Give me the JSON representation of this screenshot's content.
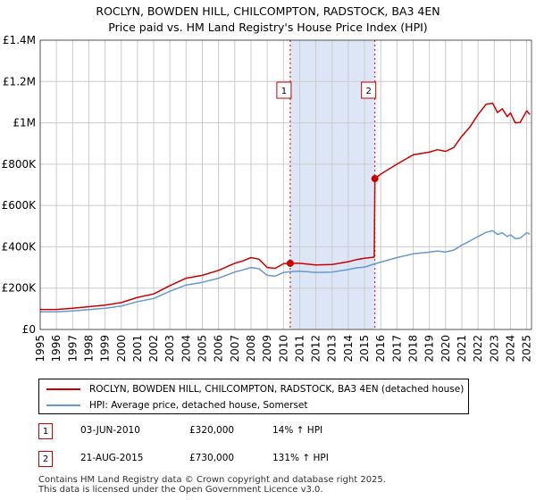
{
  "title": {
    "line1": "ROCLYN, BOWDEN HILL, CHILCOMPTON, RADSTOCK, BA3 4EN",
    "line2": "Price paid vs. HM Land Registry's House Price Index (HPI)"
  },
  "colors": {
    "property": "#cc0000",
    "hpi": "#6699cc",
    "shade": "#dde6f7",
    "grid": "#cccccc",
    "marker_border": "#cc0000"
  },
  "legend": {
    "property_label": "ROCLYN, BOWDEN HILL, CHILCOMPTON, RADSTOCK, BA3 4EN (detached house)",
    "hpi_label": "HPI: Average price, detached house, Somerset"
  },
  "transactions": [
    {
      "id": "1",
      "date": "03-JUN-2010",
      "price": "£320,000",
      "hpi_change": "14% ↑ HPI"
    },
    {
      "id": "2",
      "date": "21-AUG-2015",
      "price": "£730,000",
      "hpi_change": "131% ↑ HPI"
    }
  ],
  "footer": {
    "line1": "Contains HM Land Registry data © Crown copyright and database right 2025.",
    "line2": "This data is licensed under the Open Government Licence v3.0."
  },
  "chart_data": {
    "type": "line",
    "title": "ROCLYN, BOWDEN HILL, CHILCOMPTON, RADSTOCK, BA3 4EN",
    "subtitle": "Price paid vs. HM Land Registry's House Price Index (HPI)",
    "xlabel": "",
    "ylabel": "",
    "xlim": [
      1995,
      2025.3
    ],
    "ylim": [
      0,
      1400000
    ],
    "grid": true,
    "x_ticks": [
      "1995",
      "1996",
      "1997",
      "1998",
      "1999",
      "2000",
      "2001",
      "2002",
      "2003",
      "2004",
      "2005",
      "2006",
      "2007",
      "2008",
      "2009",
      "2010",
      "2011",
      "2012",
      "2013",
      "2014",
      "2015",
      "2016",
      "2017",
      "2018",
      "2019",
      "2020",
      "2021",
      "2022",
      "2023",
      "2024",
      "2025"
    ],
    "y_ticks": [
      {
        "value": 0,
        "label": "£0"
      },
      {
        "value": 200000,
        "label": "£200K"
      },
      {
        "value": 400000,
        "label": "£400K"
      },
      {
        "value": 600000,
        "label": "£600K"
      },
      {
        "value": 800000,
        "label": "£800K"
      },
      {
        "value": 1000000,
        "label": "£1M"
      },
      {
        "value": 1200000,
        "label": "£1.2M"
      },
      {
        "value": 1400000,
        "label": "£1.4M"
      }
    ],
    "shaded_region": [
      2010.42,
      2015.64
    ],
    "series": [
      {
        "name": "ROCLYN, BOWDEN HILL, CHILCOMPTON, RADSTOCK, BA3 4EN (detached house)",
        "x": [
          1995.0,
          1996.0,
          1997.0,
          1998.0,
          1999.0,
          2000.0,
          2001.0,
          2002.0,
          2003.0,
          2004.0,
          2005.0,
          2006.0,
          2007.0,
          2007.5,
          2008.0,
          2008.5,
          2009.0,
          2009.5,
          2010.0,
          2010.42,
          2011.0,
          2012.0,
          2013.0,
          2014.0,
          2014.5,
          2015.0,
          2015.6,
          2015.64,
          2016.0,
          2017.0,
          2018.0,
          2019.0,
          2019.5,
          2020.0,
          2020.5,
          2021.0,
          2021.5,
          2022.0,
          2022.5,
          2022.9,
          2023.2,
          2023.5,
          2023.8,
          2024.0,
          2024.3,
          2024.6,
          2025.0,
          2025.2
        ],
        "y": [
          97000,
          97000,
          103000,
          110000,
          118000,
          130000,
          155000,
          172000,
          212000,
          248000,
          262000,
          286000,
          320000,
          332000,
          348000,
          340000,
          300000,
          296000,
          318000,
          320000,
          320000,
          312000,
          314000,
          328000,
          338000,
          345000,
          350000,
          730000,
          752000,
          800000,
          845000,
          858000,
          870000,
          862000,
          880000,
          935000,
          980000,
          1040000,
          1090000,
          1095000,
          1050000,
          1068000,
          1030000,
          1048000,
          1000000,
          1002000,
          1058000,
          1040000
        ]
      },
      {
        "name": "HPI: Average price, detached house, Somerset",
        "x": [
          1995.0,
          1996.0,
          1997.0,
          1998.0,
          1999.0,
          2000.0,
          2001.0,
          2002.0,
          2003.0,
          2004.0,
          2005.0,
          2006.0,
          2007.0,
          2007.5,
          2008.0,
          2008.5,
          2009.0,
          2009.5,
          2010.0,
          2010.42,
          2011.0,
          2012.0,
          2013.0,
          2014.0,
          2014.5,
          2015.0,
          2015.64,
          2016.0,
          2017.0,
          2018.0,
          2019.0,
          2019.5,
          2020.0,
          2020.5,
          2021.0,
          2021.5,
          2022.0,
          2022.5,
          2022.9,
          2023.2,
          2023.5,
          2023.8,
          2024.0,
          2024.3,
          2024.6,
          2025.0,
          2025.2
        ],
        "y": [
          85000,
          85000,
          90000,
          96000,
          103000,
          113000,
          135000,
          150000,
          185000,
          215000,
          228000,
          248000,
          278000,
          288000,
          300000,
          294000,
          262000,
          258000,
          276000,
          280000,
          282000,
          276000,
          278000,
          290000,
          298000,
          302000,
          318000,
          326000,
          348000,
          366000,
          374000,
          380000,
          375000,
          384000,
          408000,
          428000,
          450000,
          470000,
          478000,
          460000,
          468000,
          450000,
          458000,
          440000,
          442000,
          468000,
          462000
        ]
      }
    ],
    "markers": [
      {
        "label": "1",
        "x": 2010.42,
        "y": 320000
      },
      {
        "label": "2",
        "x": 2015.64,
        "y": 730000
      }
    ]
  }
}
